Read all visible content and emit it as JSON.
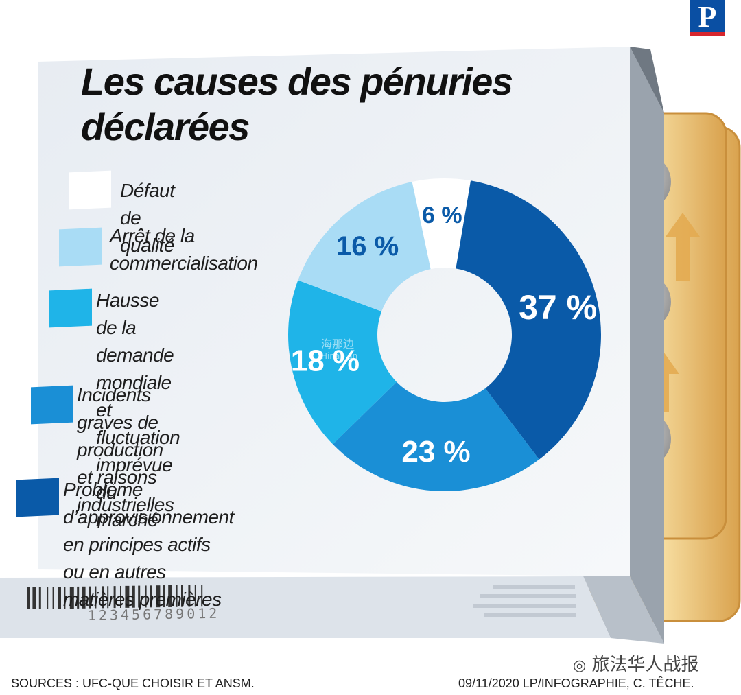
{
  "chart_data": {
    "type": "pie",
    "title": "Les causes des pénuries déclarées",
    "title_lines": [
      "Les causes des pénuries",
      "déclarées"
    ],
    "categories": [
      "Défaut de qualité",
      "Arrêt de la commercialisation",
      "Hausse de la demande mondiale et fluctuation imprévue du marché",
      "Incidents graves de production et raisons industrielles",
      "Problème d’approvisionnement en principes actifs ou en autres matières premières"
    ],
    "values": [
      6,
      16,
      18,
      23,
      37
    ],
    "value_labels": [
      "6 %",
      "16 %",
      "18 %",
      "23 %",
      "37 %"
    ],
    "legend_labels": [
      "Défaut de qualité",
      "Arrêt de la\ncommercialisation",
      "Hausse de la demande\nmondiale et fluctuation\nimprévue du marché",
      "Incidents graves de\nproduction et raisons\nindustrielles",
      "Problème d’approvisionnement\nen principes actifs ou en autres\nmatières premières"
    ],
    "colors": [
      "#ffffff",
      "#a9dcf5",
      "#1fb4e8",
      "#1a8fd6",
      "#0a5aa8"
    ],
    "label_colors": [
      "#0a5aa8",
      "#0a5aa8",
      "#ffffff",
      "#ffffff",
      "#ffffff"
    ],
    "legend_placement": "left",
    "donut": true
  },
  "barcode": {
    "digits": "123456789012"
  },
  "footer": {
    "sources": "SOURCES : UFC-QUE CHOISIR ET ANSM.",
    "credit": "09/11/2020   LP/INFOGRAPHIE, C. TÊCHE."
  },
  "branding": {
    "logo_letter": "P",
    "watermark": "旅法华人战报",
    "watermark_center": "海那边",
    "watermark_center_sub": "Hinabian"
  }
}
